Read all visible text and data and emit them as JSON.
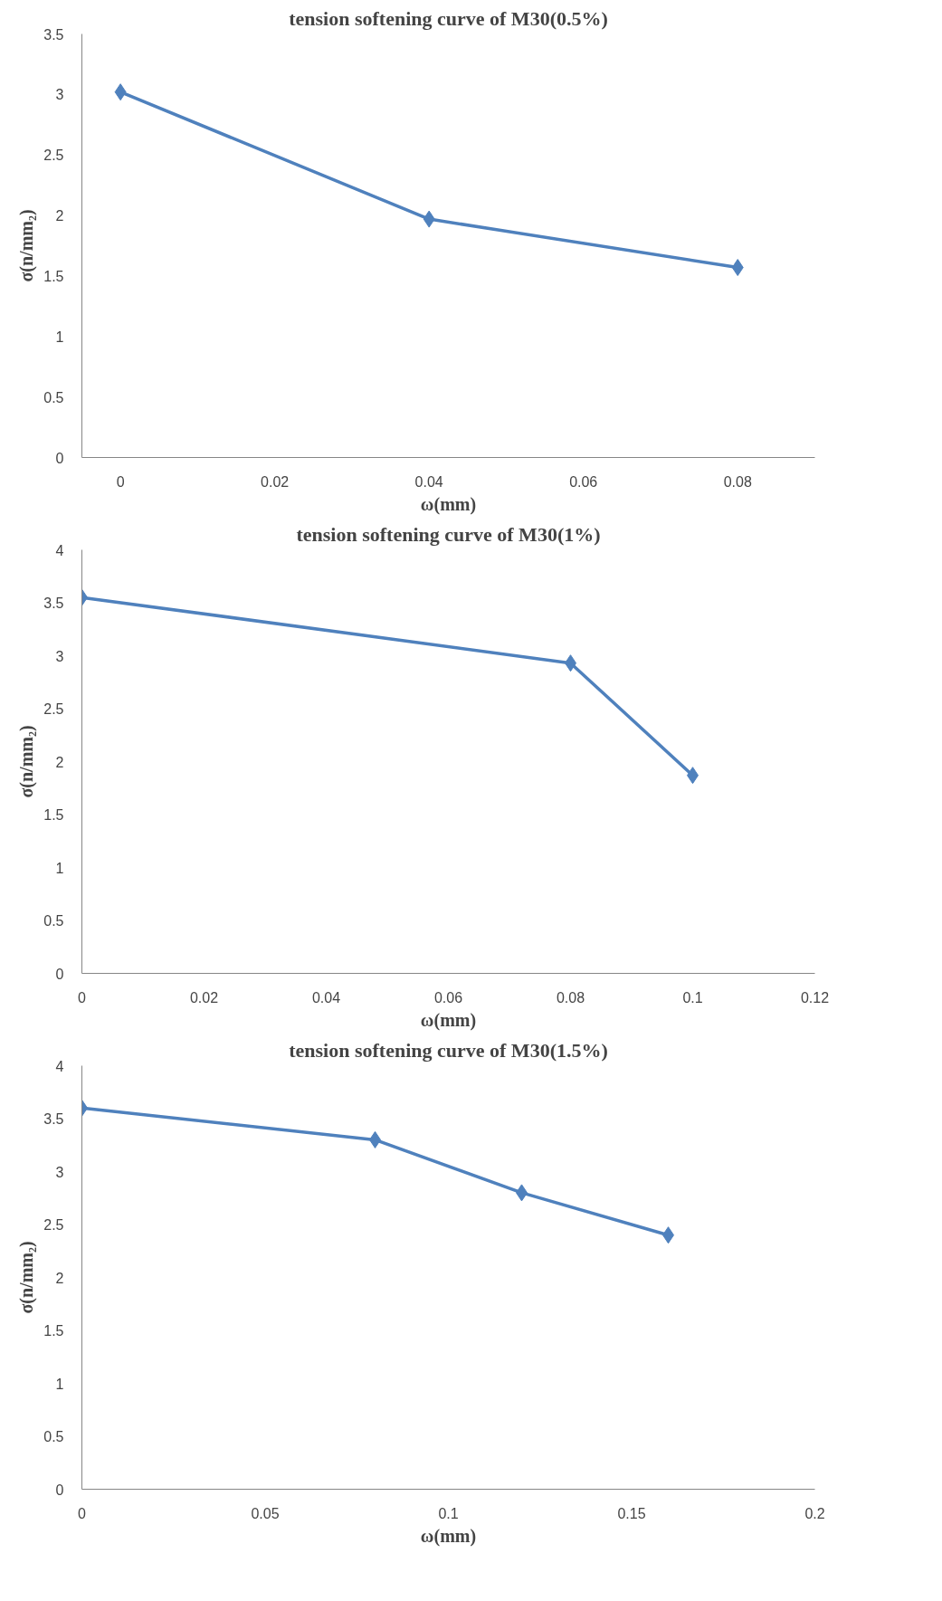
{
  "chart_data": [
    {
      "type": "line",
      "title": "tension softening curve of M30(0.5%)",
      "xlabel": "ω(mm)",
      "ylabel": "σ(n/mm₂)",
      "x": [
        0,
        0.04,
        0.08
      ],
      "series": [
        {
          "color": "#4f81bd",
          "values": [
            3.02,
            1.97,
            1.57
          ]
        }
      ],
      "xlim": [
        -0.005,
        0.09
      ],
      "xticks": [
        0,
        0.02,
        0.04,
        0.06,
        0.08
      ],
      "ylim": [
        0,
        3.5
      ],
      "yticks": [
        0,
        0.5,
        1,
        1.5,
        2,
        2.5,
        3,
        3.5
      ],
      "marker": "diamond",
      "line_style": "solid"
    },
    {
      "type": "line",
      "title": "tension softening curve of M30(1%)",
      "xlabel": "ω(mm)",
      "ylabel": "σ(n/mm₂)",
      "x": [
        0,
        0.08,
        0.1
      ],
      "series": [
        {
          "color": "#4f81bd",
          "values": [
            3.55,
            2.93,
            1.87
          ]
        }
      ],
      "xlim": [
        0,
        0.12
      ],
      "xticks": [
        0,
        0.02,
        0.04,
        0.06,
        0.08,
        0.1,
        0.12
      ],
      "ylim": [
        0,
        4
      ],
      "yticks": [
        0,
        0.5,
        1,
        1.5,
        2,
        2.5,
        3,
        3.5,
        4
      ],
      "marker": "diamond",
      "line_style": "solid"
    },
    {
      "type": "line",
      "title": "tension softening curve of M30(1.5%)",
      "xlabel": "ω(mm)",
      "ylabel": "σ(n/mm₂)",
      "x": [
        0,
        0.08,
        0.12,
        0.16
      ],
      "series": [
        {
          "color": "#4f81bd",
          "values": [
            3.6,
            3.3,
            2.8,
            2.4
          ]
        }
      ],
      "xlim": [
        0,
        0.2
      ],
      "xticks": [
        0,
        0.05,
        0.1,
        0.15,
        0.2
      ],
      "ylim": [
        0,
        4
      ],
      "yticks": [
        0,
        0.5,
        1,
        1.5,
        2,
        2.5,
        3,
        3.5,
        4
      ],
      "marker": "diamond",
      "line_style": "solid"
    }
  ]
}
